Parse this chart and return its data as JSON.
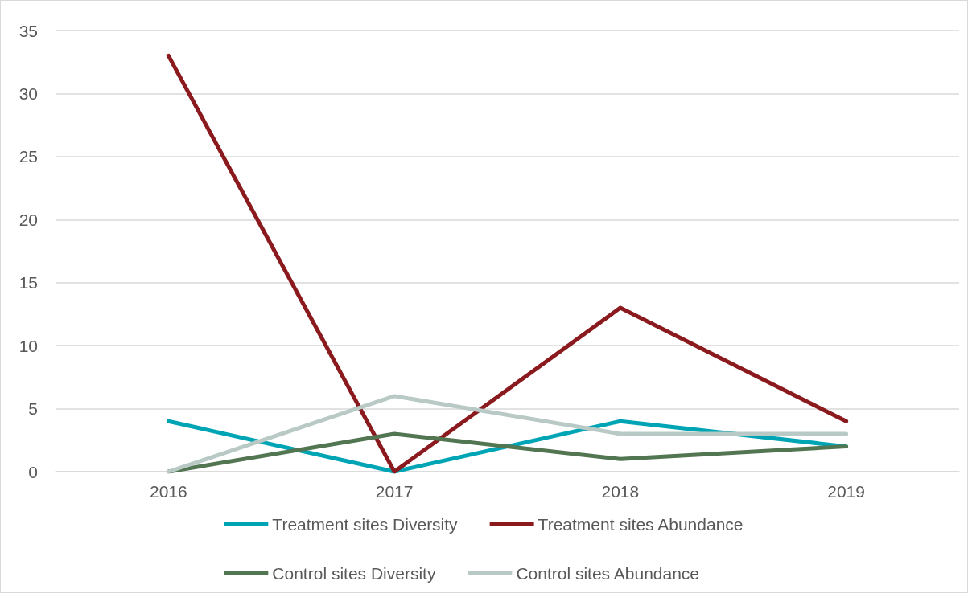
{
  "chart_data": {
    "type": "line",
    "categories": [
      "2016",
      "2017",
      "2018",
      "2019"
    ],
    "series": [
      {
        "name": "Treatment sites Diversity",
        "color": "#00a5b5",
        "values": [
          4,
          0,
          4,
          2
        ]
      },
      {
        "name": "Treatment sites Abundance",
        "color": "#8b1a1e",
        "values": [
          33,
          0,
          13,
          4
        ]
      },
      {
        "name": "Control sites Diversity",
        "color": "#527552",
        "values": [
          0,
          3,
          1,
          2
        ]
      },
      {
        "name": "Control sites Abundance",
        "color": "#b9c9c6",
        "values": [
          0,
          6,
          3,
          3
        ]
      }
    ],
    "ylim": [
      0,
      35
    ],
    "yticks": [
      0,
      5,
      10,
      15,
      20,
      25,
      30,
      35
    ],
    "grid": "y",
    "legend": "bottom",
    "marker": "none",
    "line_style": "solid"
  }
}
